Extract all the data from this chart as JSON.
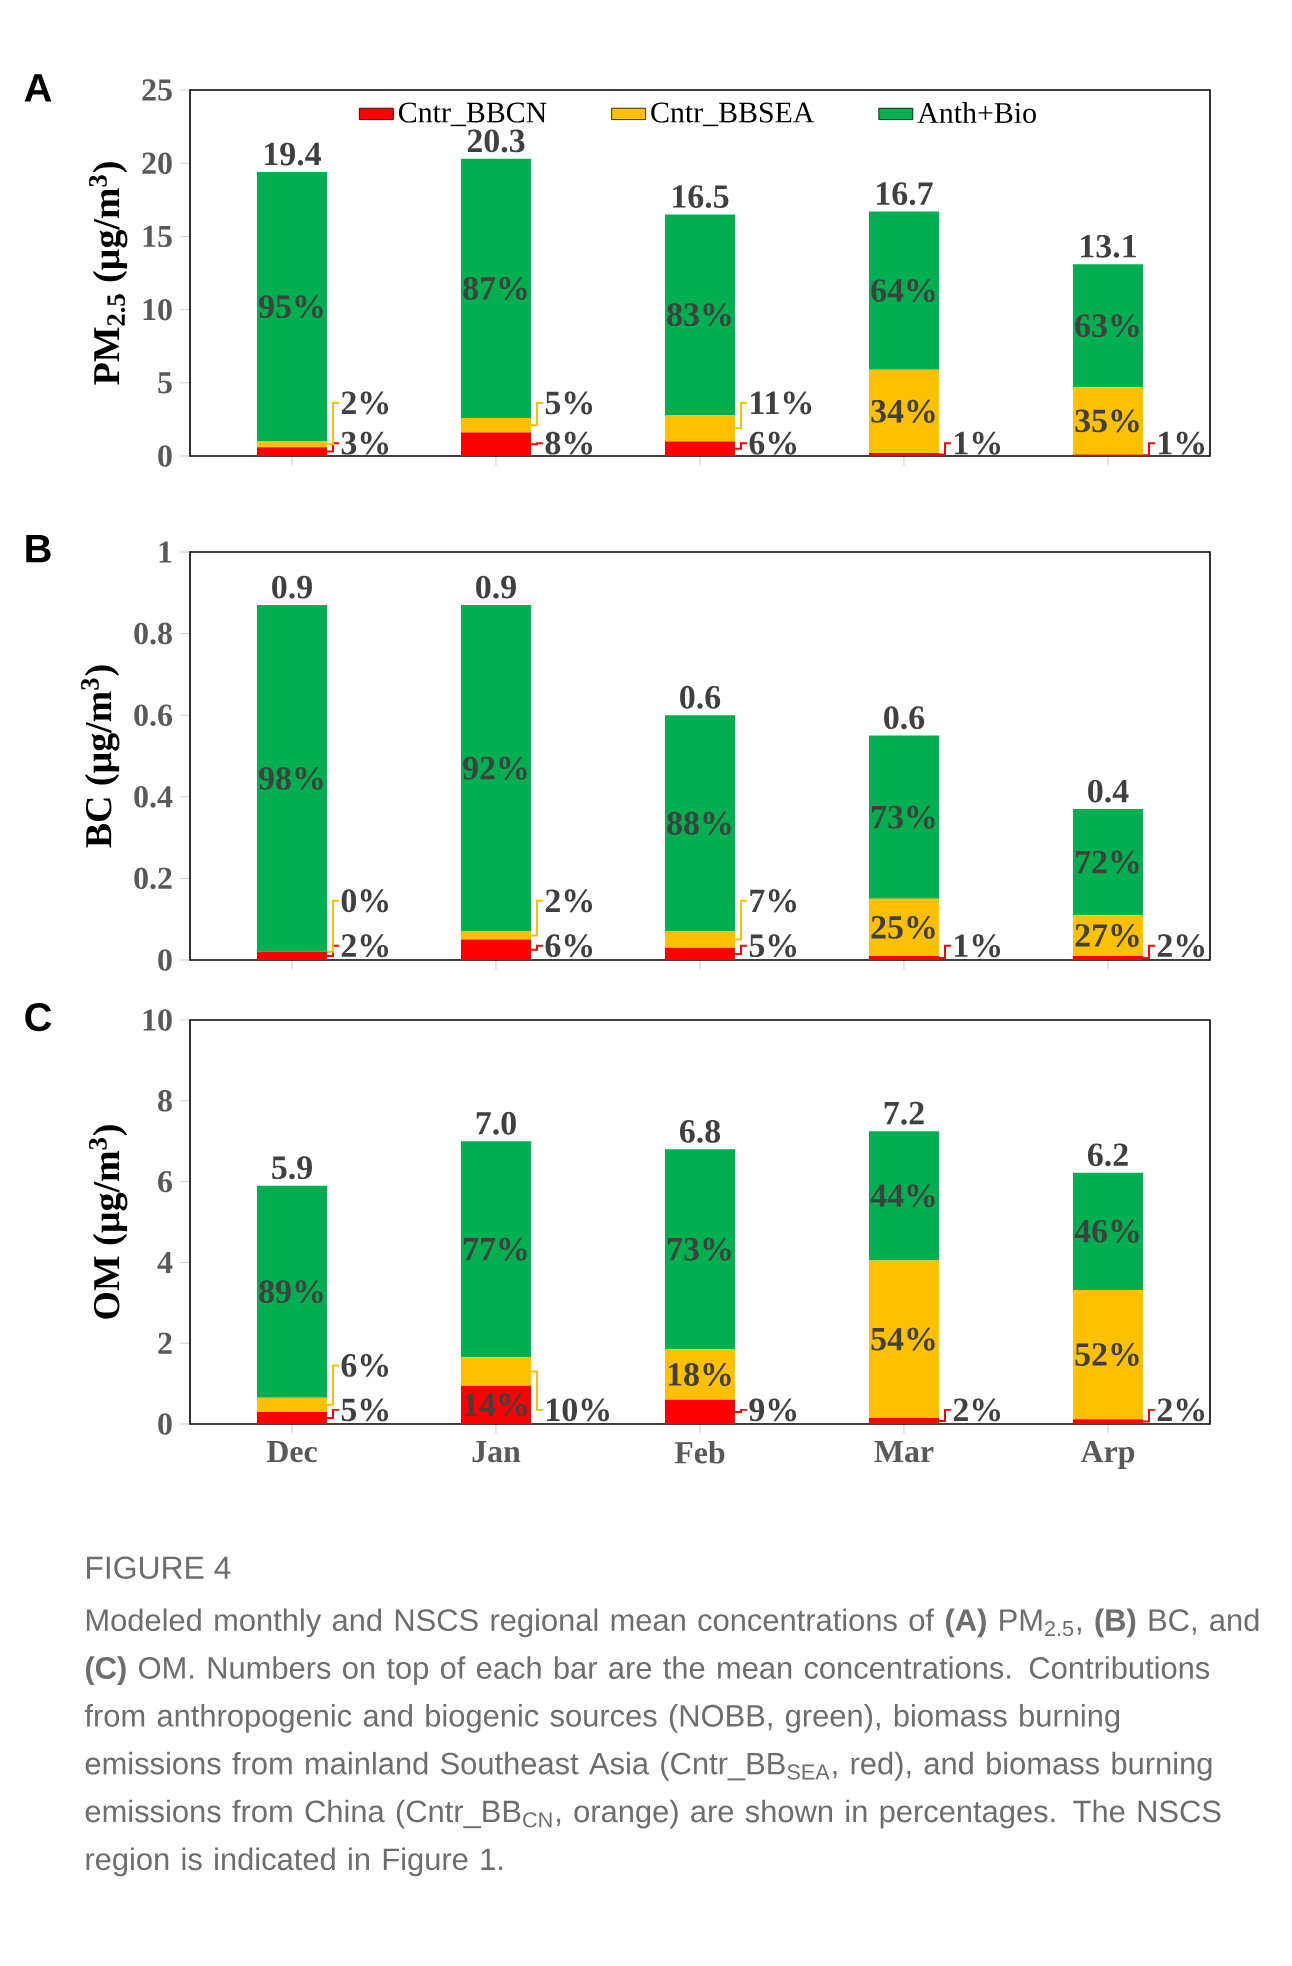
{
  "chart_data": [
    {
      "type": "bar",
      "title": "A",
      "ylabel": "PM$_{2.5}$ (µg/m$^{3}$)",
      "stacked": true,
      "categories": [
        null,
        null,
        null,
        null,
        null
      ],
      "ylim": [
        0,
        25
      ],
      "yticks": [
        0,
        5,
        10,
        15,
        20,
        25
      ],
      "tick_labels": "y",
      "legend": "top",
      "series": [
        {
          "name": "Cntr_BBCN",
          "color": "#ff0000",
          "values": [
            0.6,
            1.6,
            1.0,
            0.2,
            0.1
          ]
        },
        {
          "name": "Cntr_BBSEA",
          "color": "#ffc000",
          "values": [
            0.4,
            1.0,
            1.8,
            5.7,
            4.6
          ]
        },
        {
          "name": "Anth+Bio",
          "color": "#00b050",
          "values": [
            18.4,
            17.7,
            13.7,
            10.8,
            8.4
          ]
        }
      ],
      "totals": [
        "19.4",
        "20.3",
        "16.5",
        "16.7",
        "13.1"
      ],
      "annotations": [
        "3%",
        "8%",
        "6%",
        "1%",
        "1%",
        "2%",
        "5%",
        "11%",
        "34%",
        "35%",
        "95%",
        "87%",
        "83%",
        "64%",
        "63%"
      ]
    },
    {
      "type": "bar",
      "title": "B",
      "ylabel": "BC (µg/m$^{3}$)",
      "stacked": true,
      "categories": [
        null,
        null,
        null,
        null,
        null
      ],
      "ylim": [
        0,
        1
      ],
      "yticks": [
        0,
        0.2,
        0.4,
        0.6,
        0.8,
        1
      ],
      "tick_labels": "y",
      "series": [
        {
          "color": "#ff0000",
          "values": [
            0.02,
            0.05,
            0.03,
            0.01,
            0.01
          ]
        },
        {
          "color": "#ffc000",
          "values": [
            0.0,
            0.02,
            0.04,
            0.14,
            0.1
          ]
        },
        {
          "color": "#00b050",
          "values": [
            0.85,
            0.8,
            0.53,
            0.4,
            0.26
          ]
        }
      ],
      "totals": [
        "0.9",
        "0.9",
        "0.6",
        "0.6",
        "0.4"
      ],
      "annotations": [
        "2%",
        "6%",
        "5%",
        "1%",
        "2%",
        "0%",
        "2%",
        "7%",
        "25%",
        "27%",
        "98%",
        "92%",
        "88%",
        "73%",
        "72%"
      ]
    },
    {
      "type": "bar",
      "title": "C",
      "ylabel": "OM (µg/m$^{3}$)",
      "stacked": true,
      "categories": [
        "Dec",
        "Jan",
        "Feb",
        "Mar",
        "Arp"
      ],
      "ylim": [
        0,
        10
      ],
      "yticks": [
        0,
        2,
        4,
        6,
        8,
        10
      ],
      "series": [
        {
          "color": "#ff0000",
          "values": [
            0.3,
            0.95,
            0.6,
            0.15,
            0.12
          ]
        },
        {
          "color": "#ffc000",
          "values": [
            0.35,
            0.7,
            1.25,
            3.9,
            3.2
          ]
        },
        {
          "color": "#00b050",
          "values": [
            5.25,
            5.35,
            4.95,
            3.2,
            2.9
          ]
        }
      ],
      "totals": [
        "5.9",
        "7.0",
        "6.8",
        "7.2",
        "6.2"
      ],
      "annotations": [
        "5%",
        "14%",
        "9%",
        "2%",
        "2%",
        "6%",
        "10%",
        "18%",
        "54%",
        "52%",
        "89%",
        "77%",
        "73%",
        "44%",
        "46%",
        "FIGURE 4",
        "Modeled monthly and NSCS regional mean concentrations of **(A)** PM$_{2.5}$, **(B)** BC, and **(C)** OM. Numbers on top of each bar are the mean concentrations. Contributions from anthropogenic and biogenic sources (NOBB, green), biomass burning emissions from mainland Southeast Asia (Cntr_BB$_{SEA}$, red), and biomass burning emissions from China (Cntr_BB$_{CN}$, orange) are shown in percentages. The NSCS region is indicated in Figure 1."
      ]
    }
  ]
}
